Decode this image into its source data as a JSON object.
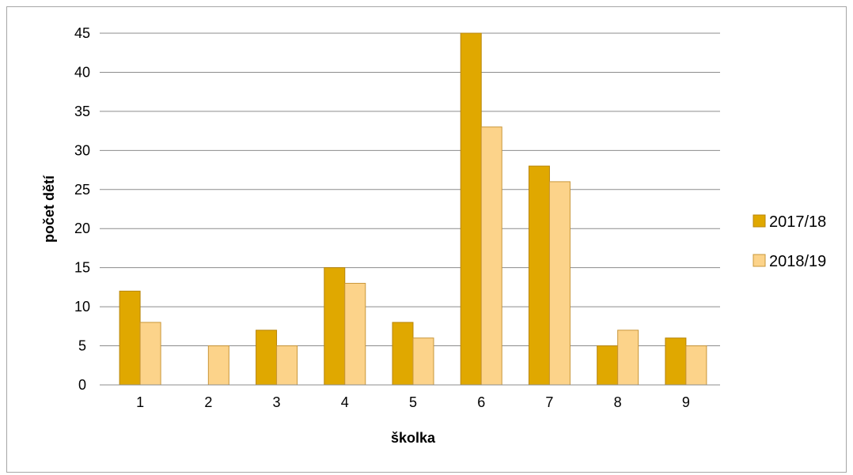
{
  "chart_data": {
    "type": "bar",
    "categories": [
      "1",
      "2",
      "3",
      "4",
      "5",
      "6",
      "7",
      "8",
      "9"
    ],
    "series": [
      {
        "name": "2017/18",
        "values": [
          12,
          0,
          7,
          15,
          8,
          45,
          28,
          5,
          6
        ],
        "color": "#e0a800",
        "stroke": "#b8860b"
      },
      {
        "name": "2018/19",
        "values": [
          8,
          5,
          5,
          13,
          6,
          33,
          26,
          7,
          5
        ],
        "color": "#fcd38a",
        "stroke": "#c9973a"
      }
    ],
    "xlabel": "školka",
    "ylabel": "počet dětí",
    "ylim": [
      0,
      45
    ],
    "yticks": [
      0,
      5,
      10,
      15,
      20,
      25,
      30,
      35,
      40,
      45
    ],
    "grid": true,
    "legend_position": "right"
  }
}
